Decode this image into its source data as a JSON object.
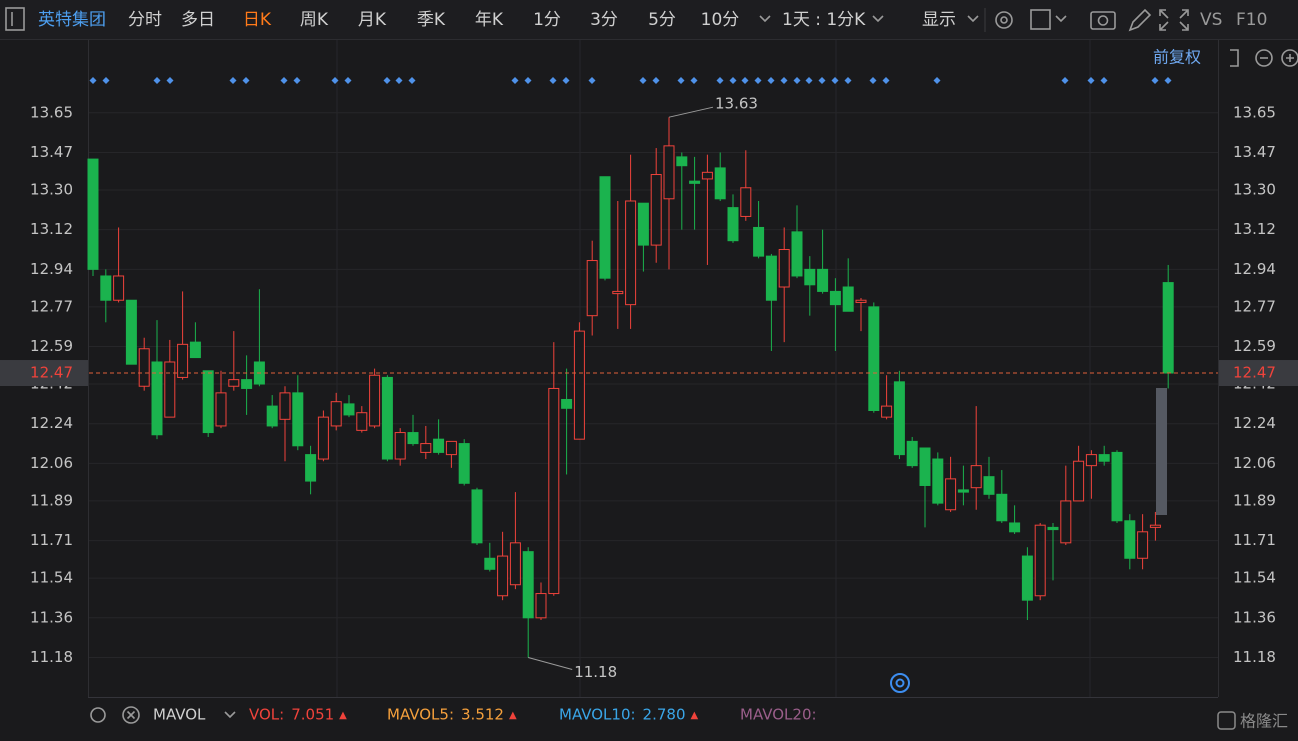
{
  "toolbar": {
    "stock_name": "英特集团",
    "tabs": [
      {
        "label": "分时"
      },
      {
        "label": "多日"
      },
      {
        "label": "日K",
        "selected": true
      },
      {
        "label": "周K"
      },
      {
        "label": "月K"
      },
      {
        "label": "季K"
      },
      {
        "label": "年K"
      },
      {
        "label": "1分"
      },
      {
        "label": "3分"
      },
      {
        "label": "5分"
      },
      {
        "label": "10分"
      }
    ],
    "period": "1天 : 1分K",
    "display": "显示",
    "vs": "VS",
    "f10": "F10"
  },
  "adjust": "前复权",
  "chart_data": {
    "type": "candlestick",
    "up_color": "#f0433b",
    "down_color": "#1bb34e",
    "open": [
      13.44,
      12.91,
      12.8,
      12.8,
      12.41,
      12.52,
      12.27,
      12.45,
      12.61,
      12.48,
      12.23,
      12.41,
      12.44,
      12.52,
      12.32,
      12.26,
      12.38,
      12.1,
      12.08,
      12.23,
      12.33,
      12.21,
      12.23,
      12.45,
      12.08,
      12.2,
      12.11,
      12.17,
      12.1,
      12.15,
      11.94,
      11.63,
      11.46,
      11.51,
      11.66,
      11.36,
      11.47,
      12.35,
      12.17,
      12.73,
      13.36,
      12.83,
      12.78,
      13.24,
      13.05,
      13.26,
      13.45,
      13.34,
      13.35,
      13.4,
      13.22,
      13.18,
      13.13,
      13.0,
      12.86,
      13.11,
      12.94,
      12.94,
      12.84,
      12.86,
      12.79,
      12.77,
      12.27,
      12.43,
      12.16,
      12.13,
      12.08,
      11.85,
      11.94,
      11.95,
      12.0,
      11.92,
      11.79,
      11.64,
      11.46,
      11.77,
      11.7,
      11.89,
      12.05,
      12.1,
      12.11,
      11.8,
      11.63,
      11.77,
      12.88
    ],
    "high": [
      13.44,
      12.94,
      13.13,
      12.8,
      12.63,
      12.71,
      12.62,
      12.84,
      12.7,
      12.48,
      12.48,
      12.66,
      12.55,
      12.85,
      12.37,
      12.41,
      12.46,
      12.14,
      12.3,
      12.38,
      12.37,
      12.32,
      12.49,
      12.46,
      12.22,
      12.28,
      12.23,
      12.26,
      12.16,
      12.17,
      11.95,
      11.7,
      11.75,
      11.93,
      11.68,
      11.52,
      12.61,
      12.49,
      12.7,
      13.07,
      13.36,
      13.25,
      13.46,
      13.24,
      13.49,
      13.63,
      13.47,
      13.45,
      13.46,
      13.47,
      13.28,
      13.48,
      13.25,
      13.01,
      13.13,
      13.23,
      13.0,
      13.12,
      12.9,
      12.99,
      12.81,
      12.79,
      12.46,
      12.48,
      12.18,
      12.13,
      12.11,
      12.09,
      12.05,
      12.32,
      12.09,
      12.03,
      11.87,
      11.68,
      11.79,
      11.79,
      12.05,
      12.14,
      12.12,
      12.14,
      12.12,
      11.83,
      11.83,
      11.84,
      12.96
    ],
    "low": [
      12.91,
      12.7,
      12.79,
      12.51,
      12.39,
      12.17,
      12.27,
      12.44,
      12.54,
      12.18,
      12.22,
      12.39,
      12.28,
      12.41,
      12.22,
      12.07,
      12.12,
      11.92,
      12.07,
      12.21,
      12.27,
      12.2,
      12.22,
      12.07,
      12.05,
      12.14,
      12.08,
      12.1,
      12.04,
      11.96,
      11.69,
      11.57,
      11.44,
      11.49,
      11.18,
      11.35,
      11.46,
      12.01,
      12.17,
      12.64,
      12.89,
      12.67,
      12.67,
      12.93,
      12.97,
      12.94,
      13.12,
      13.12,
      12.96,
      13.25,
      13.06,
      13.16,
      12.99,
      12.57,
      12.61,
      12.9,
      12.73,
      12.83,
      12.57,
      12.75,
      12.66,
      12.29,
      12.26,
      12.08,
      12.04,
      11.77,
      11.87,
      11.84,
      11.87,
      11.85,
      11.9,
      11.79,
      11.74,
      11.35,
      11.44,
      11.53,
      11.69,
      11.89,
      11.9,
      12.05,
      11.79,
      11.58,
      11.58,
      11.71,
      12.4
    ],
    "close": [
      12.94,
      12.8,
      12.91,
      12.51,
      12.58,
      12.19,
      12.52,
      12.6,
      12.54,
      12.2,
      12.38,
      12.44,
      12.4,
      12.42,
      12.23,
      12.38,
      12.14,
      11.98,
      12.27,
      12.34,
      12.28,
      12.29,
      12.46,
      12.08,
      12.2,
      12.15,
      12.15,
      12.11,
      12.16,
      11.97,
      11.7,
      11.58,
      11.64,
      11.7,
      11.36,
      11.47,
      12.4,
      12.31,
      12.66,
      12.98,
      12.9,
      12.84,
      13.25,
      13.05,
      13.37,
      13.5,
      13.41,
      13.33,
      13.38,
      13.26,
      13.07,
      13.31,
      13.0,
      12.8,
      13.03,
      12.91,
      12.87,
      12.84,
      12.78,
      12.75,
      12.8,
      12.3,
      12.32,
      12.1,
      12.05,
      11.96,
      11.88,
      11.99,
      11.93,
      12.05,
      11.92,
      11.8,
      11.75,
      11.44,
      11.78,
      11.76,
      11.89,
      12.07,
      12.1,
      12.07,
      11.8,
      11.63,
      11.75,
      11.78,
      12.47
    ],
    "ylim": [
      11.01,
      13.98
    ],
    "yticks": [
      13.65,
      13.47,
      {
        "value": 13.3,
        "label": "13.30"
      },
      13.12,
      12.94,
      12.77,
      12.59,
      12.42,
      12.24,
      12.06,
      11.89,
      11.71,
      11.54,
      11.36,
      11.18
    ],
    "grid": true,
    "last_price": 12.47,
    "last_price_color": "#f0433b",
    "annotations": {
      "high": 13.63,
      "low": 11.18
    }
  },
  "indicator": {
    "name": "MAVOL",
    "items": [
      {
        "label": "VOL:",
        "value": "7.051",
        "color": "#f0433b",
        "arrow": "▲"
      },
      {
        "label": "MAVOL5:",
        "value": "3.512",
        "color": "#f5a03c",
        "arrow": "▲"
      },
      {
        "label": "MAVOL10:",
        "value": "2.780",
        "color": "#3aa6e8",
        "arrow": "▲"
      },
      {
        "label": "MAVOL20:",
        "color": "#9a5e8a"
      }
    ]
  },
  "watermark": "格隆汇"
}
